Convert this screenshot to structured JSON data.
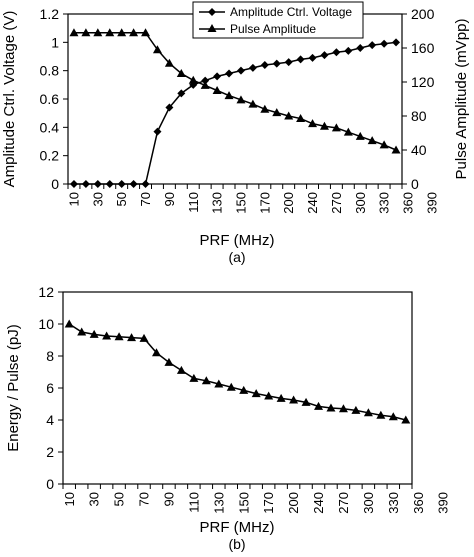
{
  "chart_data": [
    {
      "type": "line",
      "panel_label": "(a)",
      "xlabel": "PRF (MHz)",
      "ylabel": "Amplitude Ctrl. Voltage (V)",
      "y2label": "Pulse Amplitude (mVpp)",
      "ylim": [
        0,
        1.2
      ],
      "y2lim": [
        0,
        200
      ],
      "yticks": [
        "0",
        "0.2",
        "0.4",
        "0.6",
        "0.8",
        "1",
        "1.2"
      ],
      "y2ticks": [
        "0",
        "40",
        "80",
        "120",
        "160",
        "200"
      ],
      "xtick_labels": [
        "10",
        "30",
        "50",
        "70",
        "90",
        "110",
        "130",
        "150",
        "170",
        "200",
        "240",
        "270",
        "300",
        "330",
        "360",
        "390"
      ],
      "legend_position": "top",
      "grid": false,
      "series": [
        {
          "name": "Amplitude Ctrl. Voltage",
          "axis": "left",
          "marker": "diamond",
          "values": [
            0,
            0,
            0,
            0,
            0,
            0,
            0,
            0.37,
            0.54,
            0.64,
            0.7,
            0.73,
            0.76,
            0.78,
            0.8,
            0.82,
            0.84,
            0.85,
            0.86,
            0.88,
            0.89,
            0.91,
            0.93,
            0.94,
            0.96,
            0.98,
            0.99,
            1.0
          ]
        },
        {
          "name": "Pulse Amplitude",
          "axis": "right",
          "marker": "triangle",
          "values": [
            178,
            178,
            178,
            178,
            178,
            178,
            178,
            158,
            142,
            130,
            122,
            116,
            110,
            104,
            99,
            94,
            88,
            84,
            80,
            77,
            71,
            68,
            66,
            61,
            56,
            51,
            46,
            40
          ]
        }
      ]
    },
    {
      "type": "line",
      "panel_label": "(b)",
      "xlabel": "PRF (MHz)",
      "ylabel": "Energy / Pulse (pJ)",
      "ylim": [
        0,
        12
      ],
      "yticks": [
        "0",
        "2",
        "4",
        "6",
        "8",
        "10",
        "12"
      ],
      "xtick_labels": [
        "10",
        "30",
        "50",
        "70",
        "90",
        "110",
        "130",
        "150",
        "170",
        "200",
        "240",
        "270",
        "300",
        "330",
        "360",
        "390"
      ],
      "grid": false,
      "series": [
        {
          "marker": "triangle",
          "values": [
            10.0,
            9.5,
            9.35,
            9.25,
            9.2,
            9.15,
            9.1,
            8.2,
            7.6,
            7.1,
            6.6,
            6.45,
            6.25,
            6.05,
            5.85,
            5.65,
            5.5,
            5.35,
            5.25,
            5.1,
            4.85,
            4.75,
            4.7,
            4.6,
            4.45,
            4.3,
            4.2,
            4.0
          ]
        }
      ]
    }
  ]
}
